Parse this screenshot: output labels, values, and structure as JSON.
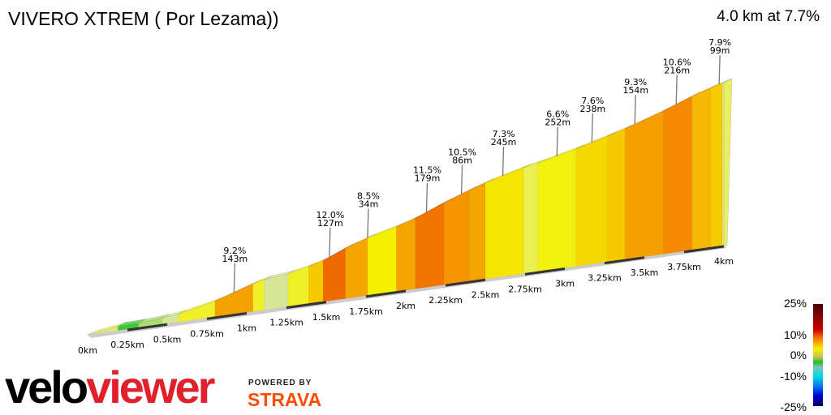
{
  "header": {
    "title": "VIVERO XTREM  ( Por Lezama))",
    "summary": "4.0 km at 7.7%"
  },
  "chart_data": {
    "type": "area",
    "title": "VIVERO XTREM  ( Por Lezama))",
    "xlabel": "",
    "ylabel": "",
    "xlim": [
      0,
      4.0
    ],
    "x_ticks": [
      "0km",
      "0.25km",
      "0.5km",
      "0.75km",
      "1km",
      "1.25km",
      "1.5km",
      "1.75km",
      "2km",
      "2.25km",
      "2.5km",
      "2.75km",
      "3km",
      "3.25km",
      "3.5km",
      "3.75km",
      "4km"
    ],
    "segments": [
      {
        "from": 0,
        "to": 0.19,
        "grade": 4
      },
      {
        "from": 0.19,
        "to": 0.32,
        "grade": 0.5
      },
      {
        "from": 0.32,
        "to": 0.47,
        "grade": 2
      },
      {
        "from": 0.47,
        "to": 0.57,
        "grade": 3
      },
      {
        "from": 0.57,
        "to": 0.8,
        "grade": 6
      },
      {
        "from": 0.8,
        "to": 1.04,
        "grade": 9.2
      },
      {
        "from": 1.04,
        "to": 1.11,
        "grade": 6
      },
      {
        "from": 1.11,
        "to": 1.26,
        "grade": 3
      },
      {
        "from": 1.26,
        "to": 1.39,
        "grade": 6
      },
      {
        "from": 1.39,
        "to": 1.48,
        "grade": 8
      },
      {
        "from": 1.48,
        "to": 1.62,
        "grade": 12
      },
      {
        "from": 1.62,
        "to": 1.76,
        "grade": 9
      },
      {
        "from": 1.76,
        "to": 1.94,
        "grade": 7
      },
      {
        "from": 1.94,
        "to": 2.06,
        "grade": 9
      },
      {
        "from": 2.06,
        "to": 2.24,
        "grade": 11.5
      },
      {
        "from": 2.24,
        "to": 2.4,
        "grade": 10
      },
      {
        "from": 2.4,
        "to": 2.5,
        "grade": 9
      },
      {
        "from": 2.5,
        "to": 2.74,
        "grade": 7.3
      },
      {
        "from": 2.74,
        "to": 2.83,
        "grade": 5
      },
      {
        "from": 2.83,
        "to": 3.07,
        "grade": 6.6
      },
      {
        "from": 3.07,
        "to": 3.27,
        "grade": 7.6
      },
      {
        "from": 3.27,
        "to": 3.38,
        "grade": 8
      },
      {
        "from": 3.38,
        "to": 3.62,
        "grade": 9.3
      },
      {
        "from": 3.62,
        "to": 3.8,
        "grade": 10.6
      },
      {
        "from": 3.8,
        "to": 3.92,
        "grade": 8.5
      },
      {
        "from": 3.92,
        "to": 3.99,
        "grade": 7.9
      },
      {
        "from": 3.99,
        "to": 4.0,
        "grade": 4
      }
    ],
    "annotations": [
      {
        "km": 0.92,
        "grade": "9.2%",
        "length": "143m"
      },
      {
        "km": 1.52,
        "grade": "12.0%",
        "length": "127m"
      },
      {
        "km": 1.76,
        "grade": "8.5%",
        "length": "34m"
      },
      {
        "km": 2.13,
        "grade": "11.5%",
        "length": "179m"
      },
      {
        "km": 2.35,
        "grade": "10.5%",
        "length": "86m"
      },
      {
        "km": 2.61,
        "grade": "7.3%",
        "length": "245m"
      },
      {
        "km": 2.95,
        "grade": "6.6%",
        "length": "252m"
      },
      {
        "km": 3.17,
        "grade": "7.6%",
        "length": "238m"
      },
      {
        "km": 3.44,
        "grade": "9.3%",
        "length": "154m"
      },
      {
        "km": 3.7,
        "grade": "10.6%",
        "length": "216m"
      },
      {
        "km": 3.97,
        "grade": "7.9%",
        "length": "99m"
      }
    ],
    "legend": {
      "labels": [
        "25%",
        "10%",
        "0%",
        "-10%",
        "-25%"
      ],
      "placement": "bottom-right"
    }
  },
  "branding": {
    "logo_left": "velo",
    "logo_right": "viewer",
    "powered": "POWERED BY",
    "strava": "STRAVA"
  }
}
